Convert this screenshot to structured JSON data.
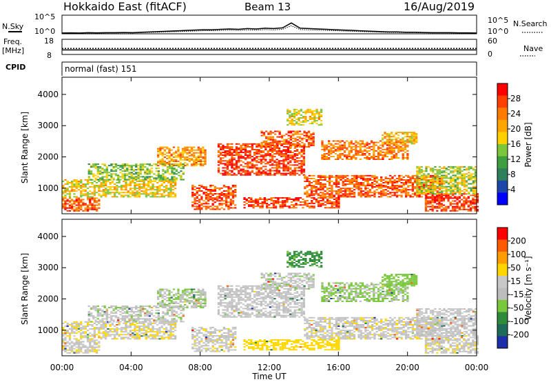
{
  "header": {
    "station": "Hokkaido East (fitACF)",
    "beam": "Beam 13",
    "date": "16/Aug/2019"
  },
  "noise_panel": {
    "left_label": "N.Sky",
    "right_label": "N.Search",
    "ticks_left": [
      "10^5",
      "10^0"
    ],
    "ticks_right": [
      "10^5",
      "10^0"
    ],
    "sky_noise_exponent": [
      0.2,
      0.25,
      0.2,
      0.3,
      0.25,
      0.3,
      0.3,
      0.35,
      0.3,
      0.4,
      0.5,
      0.6,
      0.7,
      0.8,
      0.9,
      1.0,
      1.1,
      1.1,
      1.2,
      1.3,
      1.2,
      1.4,
      1.3,
      1.5,
      1.4,
      1.6,
      2.9,
      1.5,
      1.4,
      1.3,
      1.2,
      1.1,
      1.0,
      0.9,
      0.8,
      0.7,
      0.6,
      0.5,
      0.5,
      0.4,
      0.4,
      0.35,
      0.3,
      0.3,
      0.3,
      0.25,
      0.25,
      0.2
    ]
  },
  "freq_panel": {
    "left_label_1": "Freq.",
    "left_label_2": "[MHz]",
    "right_label": "Nave",
    "ticks_left": [
      "18",
      "8"
    ],
    "ticks_right": [
      "60",
      "0"
    ],
    "freq_mhz": 11,
    "nave": 24
  },
  "cpid_panel": {
    "left_label": "CPID",
    "program": "normal (fast) 151"
  },
  "time_axis": {
    "ticks": [
      "00:00",
      "04:00",
      "08:00",
      "12:00",
      "16:00",
      "20:00",
      "00:00"
    ],
    "label": "Time UT"
  },
  "colors": {
    "power_scale": [
      "#0000ff",
      "#1c47a8",
      "#2f7f5a",
      "#3f9f40",
      "#7cc63c",
      "#ffd000",
      "#ffa500",
      "#ff7a00",
      "#ff4000",
      "#ff0000"
    ],
    "velocity_scale": [
      "#1c2ea8",
      "#1f6b5a",
      "#2e8b3a",
      "#79c83c",
      "#bdbdbd",
      "#c8c8c8",
      "#ffd700",
      "#ff9d00",
      "#ff5a00",
      "#ff0000"
    ]
  },
  "power_panel": {
    "ylabel": "Slant Range [km]",
    "yticks": [
      "4000",
      "3000",
      "2000",
      "1000"
    ],
    "colorbar_label": "Power [dB]",
    "colorbar_ticks": [
      "28",
      "24",
      "20",
      "16",
      "12",
      "8",
      "4"
    ]
  },
  "velocity_panel": {
    "ylabel": "Slant Range [km]",
    "yticks": [
      "4000",
      "3000",
      "2000",
      "1000"
    ],
    "colorbar_label": "Velocity [m s⁻¹]",
    "colorbar_ticks": [
      "200",
      "100",
      "50",
      "15",
      "-15",
      "-50",
      "-100",
      "-200"
    ]
  },
  "chart_data": {
    "type": "heatmap",
    "x_range_hours": [
      0,
      24
    ],
    "y_range_km": [
      180,
      4550
    ],
    "power_range_db": [
      0,
      32
    ],
    "velocity_range_ms": [
      -250,
      250
    ],
    "echo_regions": [
      {
        "t": [
          0.0,
          2.2
        ],
        "r": [
          250,
          700
        ],
        "power_db": 26,
        "velocity_ms": -5
      },
      {
        "t": [
          0.0,
          6.5
        ],
        "r": [
          700,
          1250
        ],
        "power_db": 18,
        "velocity_ms": -10
      },
      {
        "t": [
          1.5,
          7.0
        ],
        "r": [
          1250,
          1750
        ],
        "power_db": 14,
        "velocity_ms": 5
      },
      {
        "t": [
          5.5,
          8.3
        ],
        "r": [
          1700,
          2300
        ],
        "power_db": 22,
        "velocity_ms": 10
      },
      {
        "t": [
          7.5,
          10.0
        ],
        "r": [
          300,
          1100
        ],
        "power_db": 27,
        "velocity_ms": -5
      },
      {
        "t": [
          9.0,
          14.0
        ],
        "r": [
          1400,
          2400
        ],
        "power_db": 28,
        "velocity_ms": 0
      },
      {
        "t": [
          11.5,
          14.5
        ],
        "r": [
          2300,
          2800
        ],
        "power_db": 26,
        "velocity_ms": 5
      },
      {
        "t": [
          10.5,
          16.0
        ],
        "r": [
          350,
          700
        ],
        "power_db": 28,
        "velocity_ms": -30
      },
      {
        "t": [
          14.0,
          22.0
        ],
        "r": [
          700,
          1400
        ],
        "power_db": 26,
        "velocity_ms": -5
      },
      {
        "t": [
          15.0,
          20.0
        ],
        "r": [
          1900,
          2500
        ],
        "power_db": 24,
        "velocity_ms": 20
      },
      {
        "t": [
          18.5,
          20.5
        ],
        "r": [
          2400,
          2800
        ],
        "power_db": 20,
        "velocity_ms": 30
      },
      {
        "t": [
          21.0,
          24.0
        ],
        "r": [
          250,
          800
        ],
        "power_db": 28,
        "velocity_ms": -5
      },
      {
        "t": [
          20.5,
          24.0
        ],
        "r": [
          800,
          1700
        ],
        "power_db": 16,
        "velocity_ms": 0
      },
      {
        "t": [
          13.0,
          15.0
        ],
        "r": [
          3000,
          3500
        ],
        "power_db": 18,
        "velocity_ms": 60
      }
    ]
  }
}
